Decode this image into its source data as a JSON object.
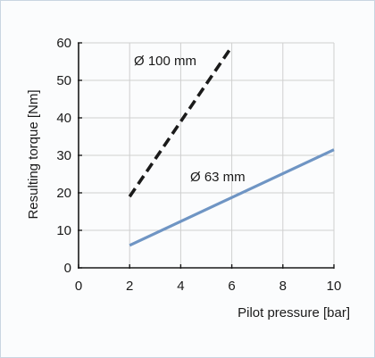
{
  "chart_data": {
    "type": "line",
    "title": "",
    "xlabel": "Pilot pressure [bar]",
    "ylabel": "Resulting torque [Nm]",
    "xlim": [
      0,
      10
    ],
    "ylim": [
      0,
      60
    ],
    "xticks": [
      0,
      2,
      4,
      6,
      8,
      10
    ],
    "yticks": [
      0,
      10,
      20,
      30,
      40,
      50,
      60
    ],
    "grid": true,
    "series": [
      {
        "name": "Ø 100 mm",
        "x": [
          2,
          6
        ],
        "y": [
          19,
          59
        ],
        "color": "#1a1a1a",
        "style": "dashed"
      },
      {
        "name": "Ø 63 mm",
        "x": [
          2,
          10
        ],
        "y": [
          6,
          31.5
        ],
        "color": "#6f95c4",
        "style": "solid"
      }
    ]
  }
}
